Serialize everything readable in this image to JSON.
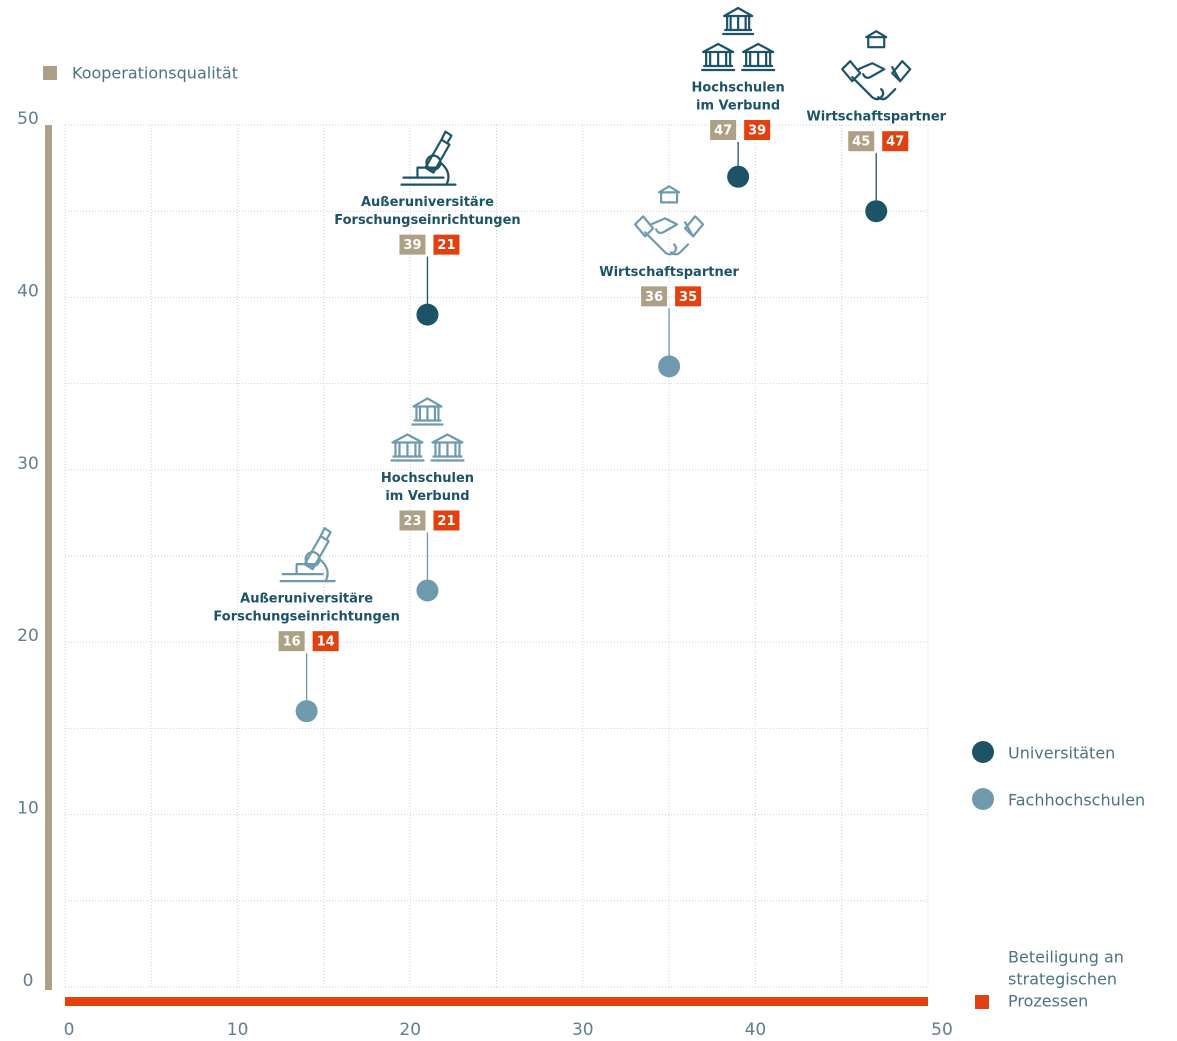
{
  "chart_data": {
    "type": "scatter",
    "ylabel": "Kooperationsqualität",
    "xlabel": [
      "Beteiligung an",
      "strategischen",
      "Prozessen"
    ],
    "ylabel_color": "#aca186",
    "xlabel_color": "#e2400f",
    "xlim": [
      0,
      50
    ],
    "xticks": [
      0,
      10,
      20,
      30,
      40,
      50
    ],
    "x_minor_ticks": [
      5,
      15,
      25,
      35,
      45
    ],
    "ylim": [
      0,
      50
    ],
    "yticks": [
      0,
      10,
      20,
      30,
      40,
      50
    ],
    "y_minor_ticks": [
      5,
      15,
      25,
      35,
      45
    ],
    "grid": true,
    "point_labels": [
      [
        "Außeruniversitäre",
        "Forschungseinrichtungen"
      ],
      [
        "Hochschulen",
        "im Verbund"
      ],
      [
        "Wirtschaftspartner"
      ]
    ],
    "series": [
      {
        "name": "Universitäten",
        "color": "#1d5366",
        "x": [
          21,
          39,
          47
        ],
        "values": [
          39,
          47,
          45
        ]
      },
      {
        "name": "Fachhochschulen",
        "color": "#6f9aae",
        "x": [
          14,
          21,
          35
        ],
        "values": [
          16,
          23,
          36
        ]
      }
    ]
  }
}
